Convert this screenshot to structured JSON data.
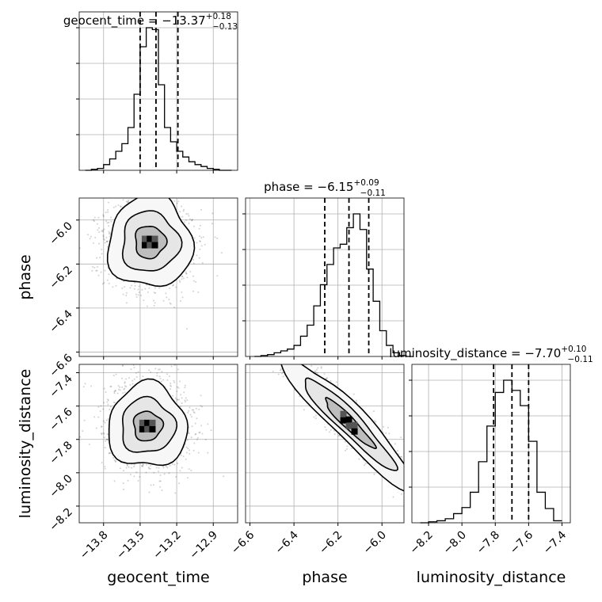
{
  "chart_data": {
    "type": "corner",
    "params": [
      {
        "name": "geocent_time",
        "label": "geocent_time",
        "median": -13.37,
        "plus": "+0.18",
        "minus": "−0.13",
        "title": "geocent_time = −13.37",
        "title_plus": "+0.18",
        "title_minus": "−0.13",
        "quantiles": [
          -13.5,
          -13.37,
          -13.19
        ],
        "range": [
          -14.0,
          -12.7
        ],
        "ticks": [
          -13.8,
          -13.5,
          -13.2,
          -12.9
        ],
        "tick_labels": [
          "−13.8",
          "−13.5",
          "−13.2",
          "−12.9"
        ]
      },
      {
        "name": "phase",
        "label": "phase",
        "median": -6.15,
        "title": "phase = −6.15",
        "title_plus": "+0.09",
        "title_minus": "−0.11",
        "quantiles": [
          -6.26,
          -6.15,
          -6.06
        ],
        "range": [
          -6.62,
          -5.9
        ],
        "ticks": [
          -6.6,
          -6.4,
          -6.2,
          -6.0
        ],
        "tick_labels": [
          "−6.6",
          "−6.4",
          "−6.2",
          "−6.0"
        ]
      },
      {
        "name": "luminosity_distance",
        "label": "luminosity_distance",
        "median": -7.7,
        "title": "luminosity_distance = −7.70",
        "title_plus": "+0.10",
        "title_minus": "−0.11",
        "quantiles": [
          -7.81,
          -7.7,
          -7.6
        ],
        "range": [
          -8.3,
          -7.35
        ],
        "ticks": [
          -8.2,
          -8.0,
          -7.8,
          -7.6,
          -7.4
        ],
        "tick_labels": [
          "−8.2",
          "−8.0",
          "−7.8",
          "−7.6",
          "−7.4"
        ]
      }
    ],
    "histograms": [
      {
        "param": "geocent_time",
        "bin_edges": [
          -13.95,
          -13.9,
          -13.85,
          -13.8,
          -13.75,
          -13.7,
          -13.65,
          -13.6,
          -13.55,
          -13.5,
          -13.45,
          -13.4,
          -13.35,
          -13.3,
          -13.25,
          -13.2,
          -13.15,
          -13.1,
          -13.05,
          -13.0,
          -12.95,
          -12.9,
          -12.85,
          -12.8,
          -12.75
        ],
        "counts": [
          0,
          1,
          2,
          6,
          12,
          20,
          28,
          45,
          80,
          130,
          150,
          148,
          90,
          45,
          30,
          20,
          14,
          9,
          6,
          4,
          2,
          1,
          0,
          0
        ]
      },
      {
        "param": "phase",
        "bin_edges": [
          -6.58,
          -6.55,
          -6.52,
          -6.49,
          -6.46,
          -6.43,
          -6.4,
          -6.37,
          -6.34,
          -6.31,
          -6.28,
          -6.25,
          -6.22,
          -6.19,
          -6.16,
          -6.13,
          -6.1,
          -6.07,
          -6.04,
          -6.01,
          -5.98,
          -5.95,
          -5.92,
          -5.89,
          -5.86
        ],
        "counts": [
          0,
          1,
          2,
          4,
          6,
          8,
          12,
          22,
          34,
          55,
          78,
          100,
          118,
          122,
          140,
          155,
          138,
          95,
          60,
          28,
          12,
          4,
          1,
          0
        ]
      },
      {
        "param": "luminosity_distance",
        "bin_edges": [
          -8.25,
          -8.2,
          -8.15,
          -8.1,
          -8.05,
          -8.0,
          -7.95,
          -7.9,
          -7.85,
          -7.8,
          -7.75,
          -7.7,
          -7.65,
          -7.6,
          -7.55,
          -7.5,
          -7.45,
          -7.4
        ],
        "counts": [
          0,
          1,
          2,
          4,
          9,
          15,
          30,
          60,
          95,
          128,
          140,
          130,
          115,
          80,
          30,
          14,
          2
        ]
      }
    ],
    "pairs": [
      {
        "x": "geocent_time",
        "y": "phase",
        "center": [
          -13.42,
          -6.1
        ],
        "spread": [
          0.16,
          0.1
        ],
        "contour_levels": [
          0.39,
          0.86,
          0.99
        ]
      },
      {
        "x": "geocent_time",
        "y": "luminosity_distance",
        "center": [
          -13.44,
          -7.72
        ],
        "spread": [
          0.15,
          0.12
        ],
        "contour_levels": [
          0.39,
          0.86,
          0.99
        ]
      },
      {
        "x": "phase",
        "y": "luminosity_distance",
        "center": [
          -6.15,
          -7.7
        ],
        "spread": [
          0.11,
          0.1
        ],
        "correlation": -0.9,
        "contour_levels": [
          0.39,
          0.86,
          0.99
        ]
      }
    ],
    "quantile_style": "dashed",
    "grid": true
  }
}
